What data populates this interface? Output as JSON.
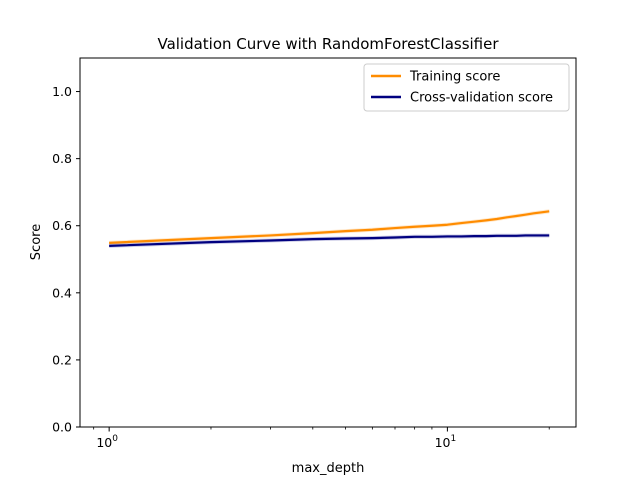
{
  "chart_data": {
    "type": "line",
    "title": "Validation Curve with RandomForestClassifier",
    "xlabel": "max_depth",
    "ylabel": "Score",
    "xscale": "log",
    "xlim": [
      0.82,
      24
    ],
    "ylim": [
      0.0,
      1.1
    ],
    "yticks": [
      0.0,
      0.2,
      0.4,
      0.6,
      0.8,
      1.0
    ],
    "ytick_labels": [
      "0.0",
      "0.2",
      "0.4",
      "0.6",
      "0.8",
      "1.0"
    ],
    "xticks": [
      1,
      10
    ],
    "xtick_bases": [
      "10",
      "10"
    ],
    "xtick_exponents": [
      "0",
      "1"
    ],
    "grid": false,
    "legend_position": "top-right",
    "x": [
      1,
      2,
      3,
      4,
      5,
      6,
      7,
      8,
      9,
      10,
      11,
      12,
      13,
      14,
      15,
      16,
      17,
      18,
      19,
      20
    ],
    "series": [
      {
        "name": "Training score",
        "color": "#ff8c00",
        "values": [
          0.549,
          0.563,
          0.571,
          0.578,
          0.584,
          0.588,
          0.593,
          0.597,
          0.6,
          0.603,
          0.608,
          0.612,
          0.616,
          0.62,
          0.625,
          0.629,
          0.633,
          0.637,
          0.64,
          0.643
        ],
        "band": 0.006
      },
      {
        "name": "Cross-validation score",
        "color": "#000080",
        "values": [
          0.54,
          0.551,
          0.556,
          0.56,
          0.562,
          0.563,
          0.565,
          0.567,
          0.567,
          0.568,
          0.568,
          0.569,
          0.569,
          0.57,
          0.57,
          0.57,
          0.571,
          0.571,
          0.571,
          0.571
        ],
        "band": 0.006
      }
    ]
  }
}
